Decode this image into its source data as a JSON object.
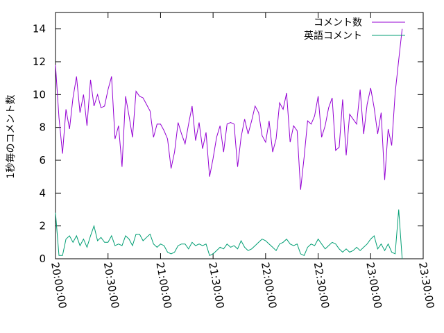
{
  "chart_data": {
    "type": "line",
    "title": "",
    "xlabel": "",
    "ylabel": "1秒毎のコメント数",
    "xlim_minutes": [
      0,
      210
    ],
    "ylim": [
      0,
      15
    ],
    "x_ticks": [
      {
        "minute": 0,
        "label": "20:00:00"
      },
      {
        "minute": 30,
        "label": "20:30:00"
      },
      {
        "minute": 60,
        "label": "21:00:00"
      },
      {
        "minute": 90,
        "label": "21:30:00"
      },
      {
        "minute": 120,
        "label": "22:00:00"
      },
      {
        "minute": 150,
        "label": "22:30:00"
      },
      {
        "minute": 180,
        "label": "23:00:00"
      },
      {
        "minute": 210,
        "label": "23:30:00"
      }
    ],
    "y_ticks": [
      0,
      2,
      4,
      6,
      8,
      10,
      12,
      14
    ],
    "legend_position": "top-right",
    "grid": false,
    "series": [
      {
        "name": "コメント数",
        "color": "#9400d3",
        "x": [
          0,
          2,
          4,
          6,
          8,
          10,
          12,
          14,
          16,
          18,
          20,
          22,
          24,
          26,
          28,
          30,
          32,
          34,
          36,
          38,
          40,
          42,
          44,
          46,
          48,
          50,
          52,
          54,
          56,
          58,
          60,
          62,
          64,
          66,
          68,
          70,
          72,
          74,
          76,
          78,
          80,
          82,
          84,
          86,
          88,
          90,
          92,
          94,
          96,
          98,
          100,
          102,
          104,
          106,
          108,
          110,
          112,
          114,
          116,
          118,
          120,
          122,
          124,
          126,
          128,
          130,
          132,
          134,
          136,
          138,
          140,
          142,
          144,
          146,
          148,
          150,
          152,
          154,
          156,
          158,
          160,
          162,
          164,
          166,
          168,
          170,
          172,
          174,
          176,
          178,
          180,
          182,
          184,
          186,
          188,
          190,
          192,
          194,
          196,
          198
        ],
        "values": [
          11.8,
          8.6,
          6.4,
          9.1,
          7.9,
          9.8,
          11.1,
          8.9,
          10.0,
          8.1,
          10.9,
          9.3,
          10.0,
          9.2,
          9.3,
          10.3,
          11.1,
          7.3,
          8.1,
          5.6,
          9.9,
          8.7,
          7.4,
          10.2,
          9.9,
          9.8,
          9.4,
          9.0,
          7.4,
          8.2,
          8.2,
          7.8,
          7.3,
          5.5,
          6.5,
          8.3,
          7.6,
          7.0,
          8.2,
          9.3,
          7.2,
          8.3,
          6.7,
          7.7,
          5.0,
          6.1,
          7.4,
          8.1,
          6.5,
          8.2,
          8.3,
          8.2,
          5.6,
          7.4,
          8.5,
          7.6,
          8.4,
          9.3,
          8.9,
          7.5,
          7.1,
          8.4,
          6.5,
          7.3,
          9.5,
          9.1,
          10.1,
          7.1,
          8.1,
          7.8,
          4.2,
          6.2,
          8.4,
          8.2,
          8.7,
          9.9,
          7.4,
          8.1,
          9.2,
          9.8,
          6.6,
          6.8,
          9.7,
          6.3,
          8.8,
          8.5,
          8.2,
          10.3,
          7.6,
          9.4,
          10.4,
          9.2,
          7.6,
          8.9,
          4.8,
          7.9,
          6.9,
          10.1,
          12.1,
          14.0
        ]
      },
      {
        "name": "英語コメント",
        "color": "#009e73",
        "x": [
          0,
          2,
          4,
          6,
          8,
          10,
          12,
          14,
          16,
          18,
          20,
          22,
          24,
          26,
          28,
          30,
          32,
          34,
          36,
          38,
          40,
          42,
          44,
          46,
          48,
          50,
          52,
          54,
          56,
          58,
          60,
          62,
          64,
          66,
          68,
          70,
          72,
          74,
          76,
          78,
          80,
          82,
          84,
          86,
          88,
          90,
          92,
          94,
          96,
          98,
          100,
          102,
          104,
          106,
          108,
          110,
          112,
          114,
          116,
          118,
          120,
          122,
          124,
          126,
          128,
          130,
          132,
          134,
          136,
          138,
          140,
          142,
          144,
          146,
          148,
          150,
          152,
          154,
          156,
          158,
          160,
          162,
          164,
          166,
          168,
          170,
          172,
          174,
          176,
          178,
          180,
          182,
          184,
          186,
          188,
          190,
          192,
          194,
          196,
          198
        ],
        "values": [
          2.8,
          0.2,
          0.2,
          1.2,
          1.4,
          1.0,
          1.4,
          0.8,
          1.2,
          0.7,
          1.4,
          2.0,
          1.1,
          1.3,
          1.0,
          1.0,
          1.4,
          0.8,
          0.9,
          0.8,
          1.4,
          1.2,
          0.8,
          1.5,
          1.5,
          1.1,
          1.3,
          1.5,
          0.9,
          0.7,
          0.9,
          0.8,
          0.4,
          0.3,
          0.4,
          0.8,
          0.9,
          0.9,
          0.6,
          1.0,
          0.8,
          0.9,
          0.8,
          0.9,
          0.2,
          0.3,
          0.5,
          0.7,
          0.6,
          0.9,
          0.7,
          0.8,
          0.6,
          1.1,
          0.7,
          0.5,
          0.6,
          0.8,
          1.0,
          1.2,
          1.1,
          0.9,
          0.7,
          0.5,
          0.9,
          1.0,
          1.2,
          0.9,
          0.8,
          0.9,
          0.3,
          0.2,
          0.7,
          0.9,
          0.8,
          1.2,
          0.9,
          0.6,
          0.8,
          1.0,
          0.9,
          0.6,
          0.4,
          0.6,
          0.4,
          0.5,
          0.7,
          0.5,
          0.7,
          0.9,
          1.2,
          1.4,
          0.6,
          0.9,
          0.5,
          0.9,
          0.4,
          0.3,
          3.0,
          0.0
        ]
      }
    ]
  }
}
